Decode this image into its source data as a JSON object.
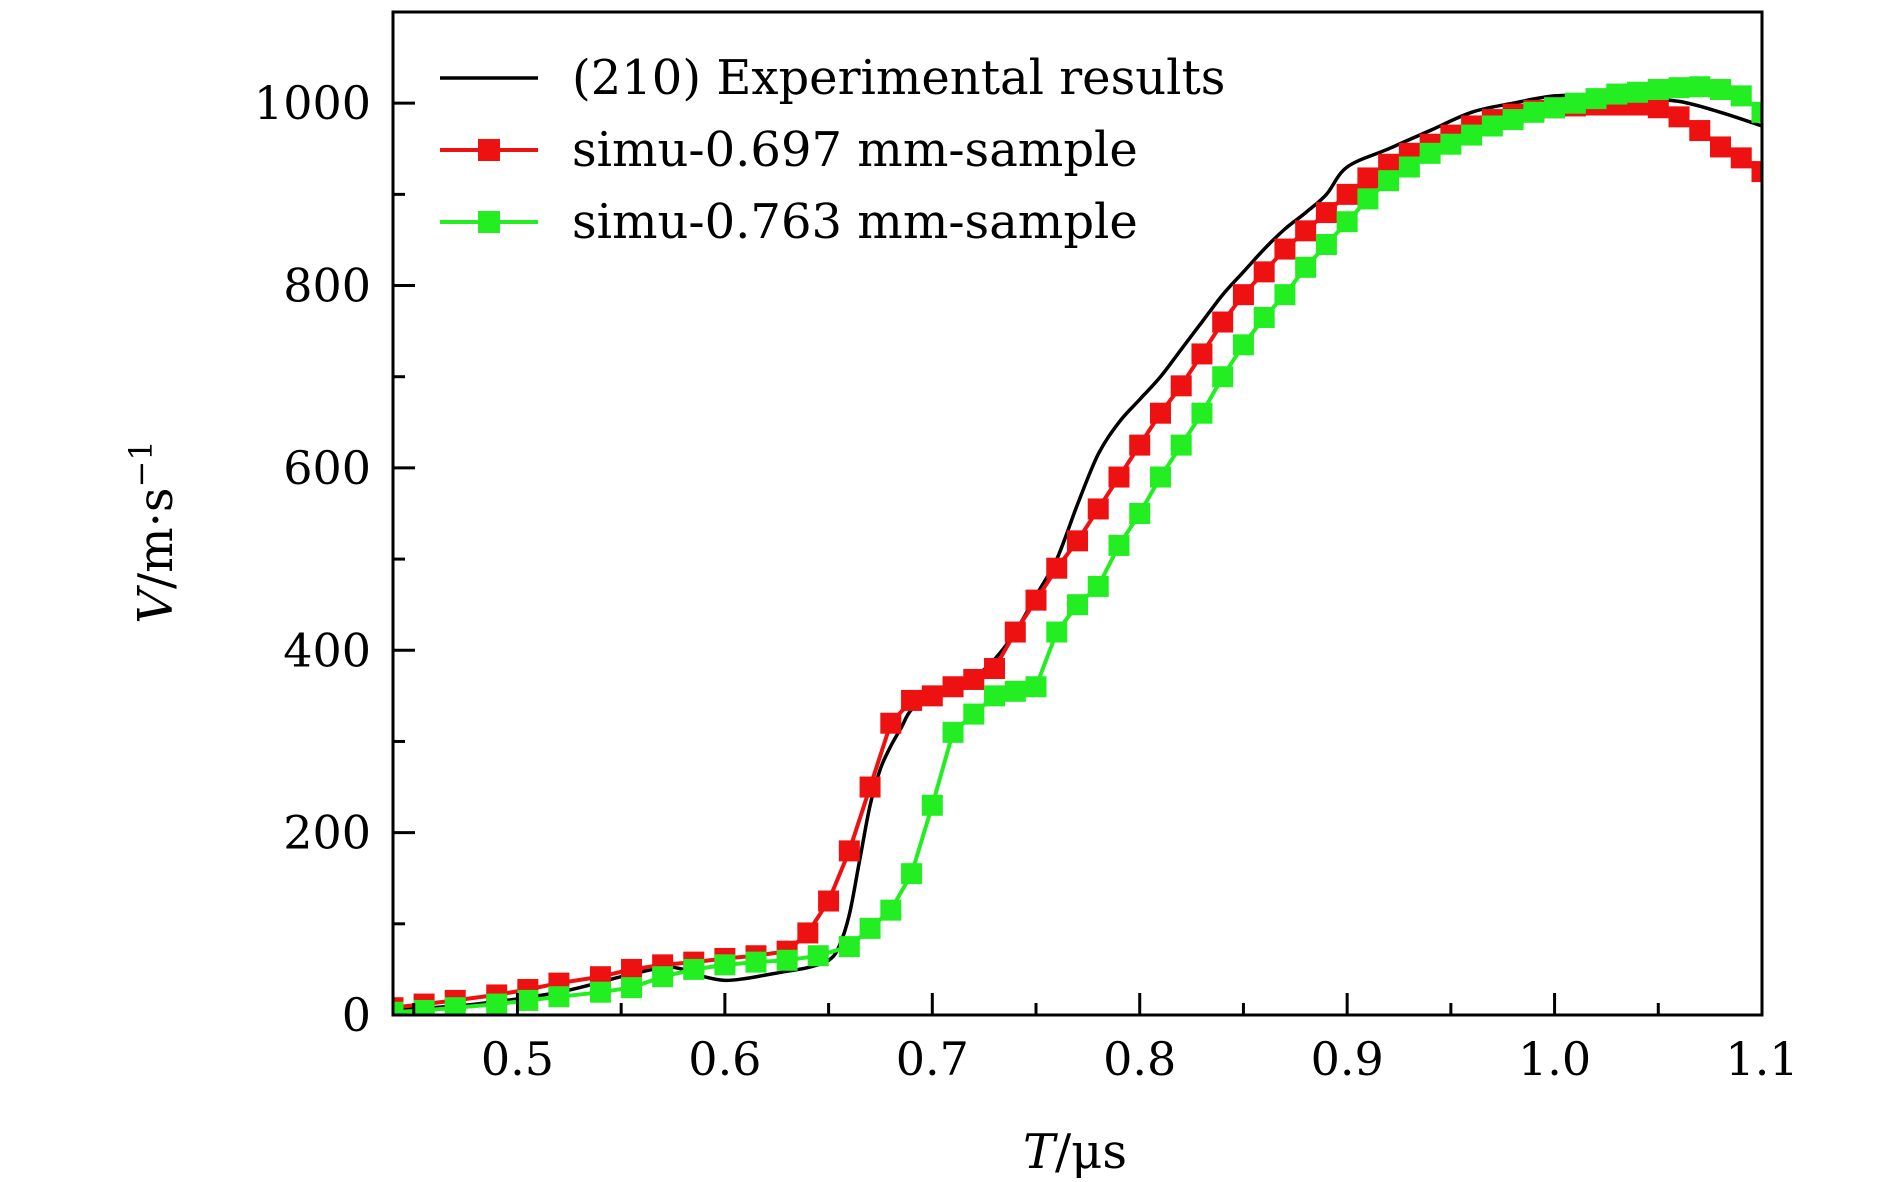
{
  "chart_data": {
    "type": "line",
    "title": "",
    "xlabel_var": "T",
    "xlabel_unit": "/μs",
    "ylabel_var": "V",
    "ylabel_unit": "/m·s",
    "ylabel_exp": "−1",
    "xlim": [
      0.44,
      1.1
    ],
    "ylim": [
      0,
      1100
    ],
    "xticks": [
      0.5,
      0.6,
      0.7,
      0.8,
      0.9,
      1.0,
      1.1
    ],
    "xtick_labels": [
      "0.5",
      "0.6",
      "0.7",
      "0.8",
      "0.9",
      "1.0",
      "1.1"
    ],
    "yticks": [
      0,
      200,
      400,
      600,
      800,
      1000
    ],
    "ytick_labels": [
      "0",
      "200",
      "400",
      "600",
      "800",
      "1000"
    ],
    "grid": false,
    "legend_position": "top-left",
    "series": [
      {
        "name": "(210) Experimental results",
        "color": "#000000",
        "marker": "none",
        "x": [
          0.44,
          0.48,
          0.52,
          0.55,
          0.57,
          0.58,
          0.59,
          0.6,
          0.61,
          0.62,
          0.63,
          0.64,
          0.65,
          0.655,
          0.66,
          0.665,
          0.67,
          0.675,
          0.68,
          0.685,
          0.69,
          0.7,
          0.71,
          0.72,
          0.73,
          0.74,
          0.75,
          0.76,
          0.77,
          0.78,
          0.79,
          0.8,
          0.81,
          0.82,
          0.83,
          0.84,
          0.85,
          0.86,
          0.87,
          0.88,
          0.89,
          0.9,
          0.92,
          0.94,
          0.96,
          0.98,
          1.0,
          1.02,
          1.04,
          1.06,
          1.08,
          1.1
        ],
        "y": [
          5,
          12,
          25,
          42,
          52,
          50,
          42,
          38,
          40,
          44,
          48,
          52,
          60,
          75,
          110,
          170,
          230,
          270,
          295,
          315,
          335,
          350,
          358,
          370,
          390,
          420,
          460,
          500,
          560,
          615,
          650,
          675,
          700,
          730,
          760,
          790,
          815,
          840,
          862,
          880,
          900,
          930,
          950,
          970,
          990,
          1000,
          1008,
          1008,
          1005,
          1002,
          990,
          975
        ]
      },
      {
        "name": "simu-0.697 mm-sample",
        "color": "#ee1111",
        "marker": "square",
        "x": [
          0.44,
          0.455,
          0.47,
          0.49,
          0.505,
          0.52,
          0.54,
          0.555,
          0.57,
          0.585,
          0.6,
          0.615,
          0.63,
          0.64,
          0.65,
          0.66,
          0.67,
          0.68,
          0.69,
          0.7,
          0.71,
          0.72,
          0.73,
          0.74,
          0.75,
          0.76,
          0.77,
          0.78,
          0.79,
          0.8,
          0.81,
          0.82,
          0.83,
          0.84,
          0.85,
          0.86,
          0.87,
          0.88,
          0.89,
          0.9,
          0.91,
          0.92,
          0.93,
          0.94,
          0.95,
          0.96,
          0.97,
          0.98,
          0.99,
          1.0,
          1.01,
          1.02,
          1.03,
          1.04,
          1.05,
          1.06,
          1.07,
          1.08,
          1.09,
          1.1
        ],
        "y": [
          8,
          12,
          16,
          22,
          28,
          35,
          42,
          50,
          55,
          58,
          62,
          65,
          70,
          90,
          125,
          180,
          250,
          320,
          345,
          350,
          360,
          368,
          380,
          420,
          455,
          490,
          520,
          555,
          590,
          625,
          660,
          690,
          725,
          760,
          790,
          815,
          840,
          860,
          880,
          900,
          918,
          933,
          945,
          955,
          965,
          975,
          982,
          988,
          992,
          995,
          997,
          998,
          998,
          998,
          995,
          985,
          970,
          952,
          940,
          925
        ]
      },
      {
        "name": "simu-0.763 mm-sample",
        "color": "#22ee22",
        "marker": "square",
        "x": [
          0.44,
          0.455,
          0.47,
          0.49,
          0.505,
          0.52,
          0.54,
          0.555,
          0.57,
          0.585,
          0.6,
          0.615,
          0.63,
          0.645,
          0.66,
          0.67,
          0.68,
          0.69,
          0.7,
          0.71,
          0.72,
          0.73,
          0.74,
          0.75,
          0.76,
          0.77,
          0.78,
          0.79,
          0.8,
          0.81,
          0.82,
          0.83,
          0.84,
          0.85,
          0.86,
          0.87,
          0.88,
          0.89,
          0.9,
          0.91,
          0.92,
          0.93,
          0.94,
          0.95,
          0.96,
          0.97,
          0.98,
          0.99,
          1.0,
          1.01,
          1.02,
          1.03,
          1.04,
          1.05,
          1.06,
          1.07,
          1.08,
          1.09,
          1.1
        ],
        "y": [
          3,
          5,
          8,
          12,
          16,
          20,
          25,
          30,
          42,
          50,
          55,
          58,
          60,
          65,
          75,
          95,
          115,
          155,
          230,
          310,
          330,
          350,
          355,
          360,
          420,
          450,
          470,
          515,
          550,
          590,
          625,
          660,
          700,
          735,
          765,
          790,
          820,
          845,
          870,
          895,
          915,
          930,
          945,
          955,
          965,
          975,
          982,
          990,
          995,
          1000,
          1005,
          1010,
          1012,
          1015,
          1017,
          1018,
          1015,
          1008,
          990
        ]
      }
    ]
  }
}
